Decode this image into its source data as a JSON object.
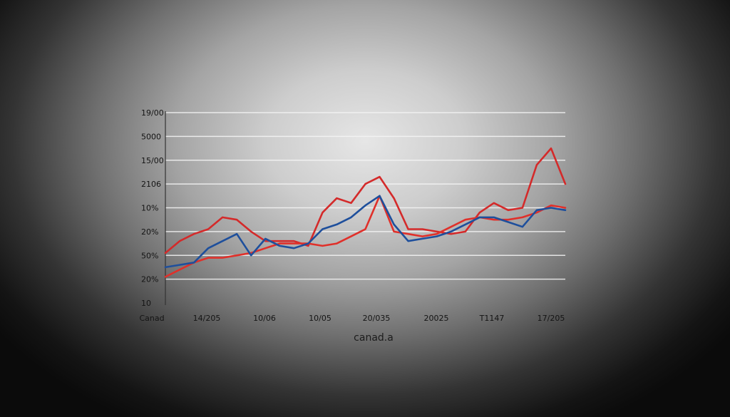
{
  "chart_data": {
    "type": "line",
    "title": "",
    "xlabel": "canad.a",
    "ylabel": "",
    "grid": true,
    "legend": "none",
    "y_tick_labels": [
      "19/00",
      "5000",
      "15/00",
      "2106",
      "10%",
      "20%",
      "50%",
      "20%",
      "10"
    ],
    "x_tick_labels": [
      "Canad",
      "14/205",
      "10/06",
      "10/05",
      "20/035",
      "20025",
      "T1147",
      "17/205"
    ],
    "ylim": [
      0,
      8
    ],
    "xlim": [
      0,
      28
    ],
    "series": [
      {
        "color": "#d42a2a",
        "x": [
          0,
          1,
          2,
          3,
          4,
          5,
          6,
          7,
          8,
          9,
          10,
          11,
          12,
          13,
          14,
          15,
          16,
          17,
          18,
          19,
          20,
          21,
          22,
          23,
          24,
          25,
          26,
          27,
          28
        ],
        "values": [
          2.1,
          2.6,
          2.9,
          3.1,
          3.6,
          3.5,
          3.0,
          2.6,
          2.6,
          2.6,
          2.4,
          3.8,
          4.4,
          4.2,
          5.0,
          5.3,
          4.4,
          3.1,
          3.1,
          3.0,
          2.9,
          3.0,
          3.8,
          4.2,
          3.9,
          4.0,
          5.8,
          6.5,
          5.0
        ]
      },
      {
        "color": "#e0302a",
        "x": [
          0,
          1,
          2,
          3,
          4,
          5,
          6,
          7,
          8,
          9,
          10,
          11,
          12,
          13,
          14,
          15,
          16,
          17,
          18,
          19,
          20,
          21,
          22,
          23,
          24,
          25,
          26,
          27,
          28
        ],
        "values": [
          1.1,
          1.4,
          1.7,
          1.9,
          1.9,
          2.0,
          2.1,
          2.3,
          2.5,
          2.5,
          2.5,
          2.4,
          2.5,
          2.8,
          3.1,
          4.5,
          3.0,
          2.9,
          2.8,
          2.9,
          3.2,
          3.5,
          3.6,
          3.5,
          3.5,
          3.6,
          3.8,
          4.1,
          4.0
        ]
      },
      {
        "color": "#1e4f9c",
        "x": [
          0,
          1,
          2,
          3,
          4,
          5,
          6,
          7,
          8,
          9,
          10,
          11,
          12,
          13,
          14,
          15,
          16,
          17,
          18,
          19,
          20,
          21,
          22,
          23,
          24,
          25,
          26,
          27,
          28
        ],
        "values": [
          1.5,
          1.6,
          1.7,
          2.3,
          2.6,
          2.9,
          2.0,
          2.7,
          2.4,
          2.3,
          2.5,
          3.1,
          3.3,
          3.6,
          4.1,
          4.5,
          3.3,
          2.6,
          2.7,
          2.8,
          3.0,
          3.3,
          3.6,
          3.6,
          3.4,
          3.2,
          3.9,
          4.0,
          3.9
        ]
      }
    ]
  }
}
